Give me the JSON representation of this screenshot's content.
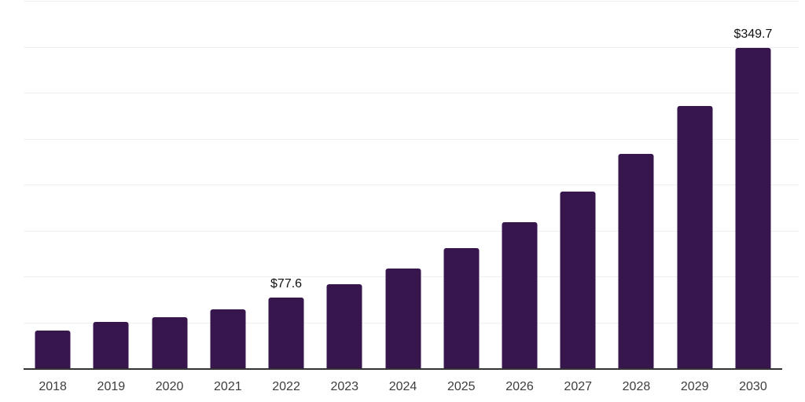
{
  "chart_data": {
    "type": "bar",
    "title": "",
    "xlabel": "",
    "ylabel": "",
    "categories": [
      "2018",
      "2019",
      "2020",
      "2021",
      "2022",
      "2023",
      "2024",
      "2025",
      "2026",
      "2027",
      "2028",
      "2029",
      "2030"
    ],
    "values": [
      42,
      51,
      56.5,
      65,
      77.6,
      92,
      109.5,
      132,
      160,
      193,
      234,
      286,
      349.7
    ],
    "data_labels": [
      "",
      "",
      "",
      "",
      "$77.6",
      "",
      "",
      "",
      "",
      "",
      "",
      "",
      "$349.7"
    ],
    "ylim": [
      0,
      400
    ],
    "grid_step": 50,
    "grid": true,
    "legend": false,
    "colors": {
      "bar": "#37154D",
      "gridline": "#efefef",
      "axis": "#333333",
      "tick_label": "#3d3d3d",
      "value_label": "#111111",
      "background": "#ffffff"
    }
  }
}
